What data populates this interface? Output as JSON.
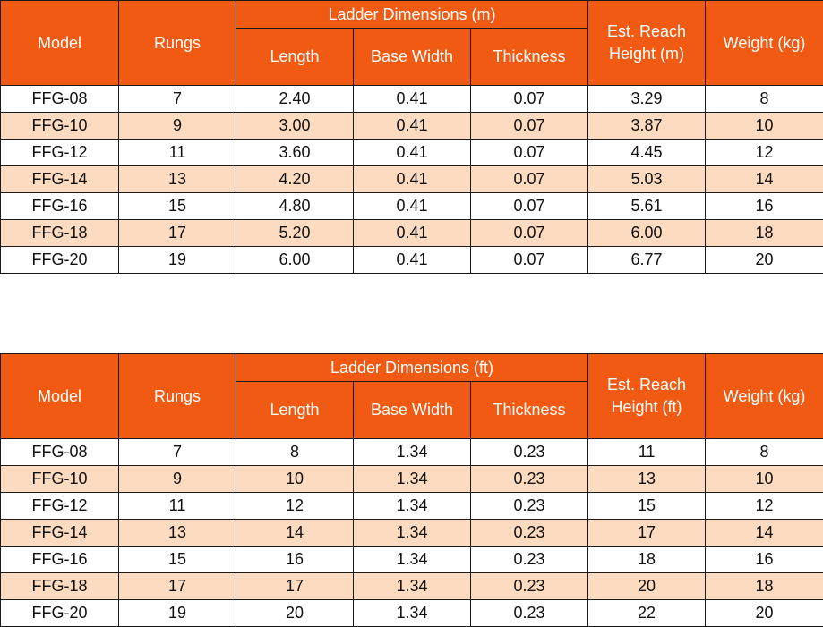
{
  "metric_table": {
    "headers": {
      "model": "Model",
      "rungs": "Rungs",
      "group": "Ladder Dimensions (m)",
      "length": "Length",
      "base_width": "Base Width",
      "thickness": "Thickness",
      "reach": "Est. Reach Height (m)",
      "weight": "Weight (kg)"
    },
    "rows": [
      [
        "FFG-08",
        "7",
        "2.40",
        "0.41",
        "0.07",
        "3.29",
        "8"
      ],
      [
        "FFG-10",
        "9",
        "3.00",
        "0.41",
        "0.07",
        "3.87",
        "10"
      ],
      [
        "FFG-12",
        "11",
        "3.60",
        "0.41",
        "0.07",
        "4.45",
        "12"
      ],
      [
        "FFG-14",
        "13",
        "4.20",
        "0.41",
        "0.07",
        "5.03",
        "14"
      ],
      [
        "FFG-16",
        "15",
        "4.80",
        "0.41",
        "0.07",
        "5.61",
        "16"
      ],
      [
        "FFG-18",
        "17",
        "5.20",
        "0.41",
        "0.07",
        "6.00",
        "18"
      ],
      [
        "FFG-20",
        "19",
        "6.00",
        "0.41",
        "0.07",
        "6.77",
        "20"
      ]
    ]
  },
  "imperial_table": {
    "headers": {
      "model": "Model",
      "rungs": "Rungs",
      "group": "Ladder Dimensions (ft)",
      "length": "Length",
      "base_width": "Base Width",
      "thickness": "Thickness",
      "reach": "Est. Reach Height (ft)",
      "weight": "Weight (kg)"
    },
    "rows": [
      [
        "FFG-08",
        "7",
        "8",
        "1.34",
        "0.23",
        "11",
        "8"
      ],
      [
        "FFG-10",
        "9",
        "10",
        "1.34",
        "0.23",
        "13",
        "10"
      ],
      [
        "FFG-12",
        "11",
        "12",
        "1.34",
        "0.23",
        "15",
        "12"
      ],
      [
        "FFG-14",
        "13",
        "14",
        "1.34",
        "0.23",
        "17",
        "14"
      ],
      [
        "FFG-16",
        "15",
        "16",
        "1.34",
        "0.23",
        "18",
        "16"
      ],
      [
        "FFG-18",
        "17",
        "17",
        "1.34",
        "0.23",
        "20",
        "18"
      ],
      [
        "FFG-20",
        "19",
        "20",
        "1.34",
        "0.23",
        "22",
        "20"
      ]
    ]
  },
  "colors": {
    "header_bg": "#f05a12",
    "header_text": "#ffffff",
    "stripe_bg": "#fddbc0",
    "row_bg": "#ffffff",
    "border": "#1a1a1a"
  }
}
